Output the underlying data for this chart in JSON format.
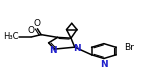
{
  "background_color": "#ffffff",
  "figsize": [
    1.59,
    0.81
  ],
  "dpi": 100,
  "bond_color": "#000000",
  "blue_color": "#2020cc",
  "lw_main": 1.1,
  "lw_double": 0.8,
  "label_fontsize": 6.5,
  "xlim": [
    0,
    1
  ],
  "ylim": [
    0,
    1
  ]
}
